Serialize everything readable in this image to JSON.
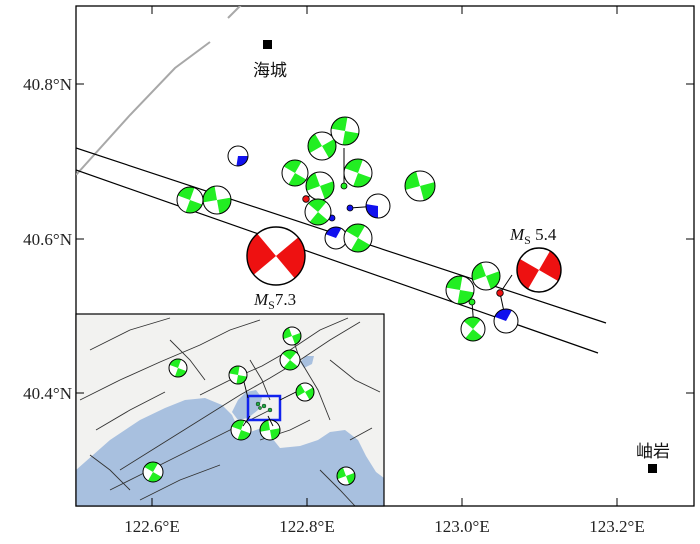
{
  "axes": {
    "lat_ticks": [
      "40.8°N",
      "40.6°N",
      "40.4°N"
    ],
    "lon_ticks": [
      "122.6°E",
      "122.8°E",
      "123.0°E",
      "123.2°E"
    ]
  },
  "places": [
    {
      "name": "海城",
      "lon": 122.75,
      "lat": 40.85
    },
    {
      "name": "岫岩",
      "lon": 123.25,
      "lat": 40.3
    }
  ],
  "events": [
    {
      "label_m": "M",
      "label_sub": "S",
      "label_val": "7.3",
      "color": "#ee1111"
    },
    {
      "label_m": "M",
      "label_sub": "S",
      "label_val": " 5.4",
      "color": "#ee1111"
    }
  ],
  "colors": {
    "large_event": "#ee1111",
    "mechanism_green": "#22ee22",
    "mechanism_blue": "#1111ee",
    "sea": "#a8c0df",
    "land": "#f2f2f0",
    "fault_grey": "#a8a8a8",
    "inset_box": "#1122ee"
  }
}
